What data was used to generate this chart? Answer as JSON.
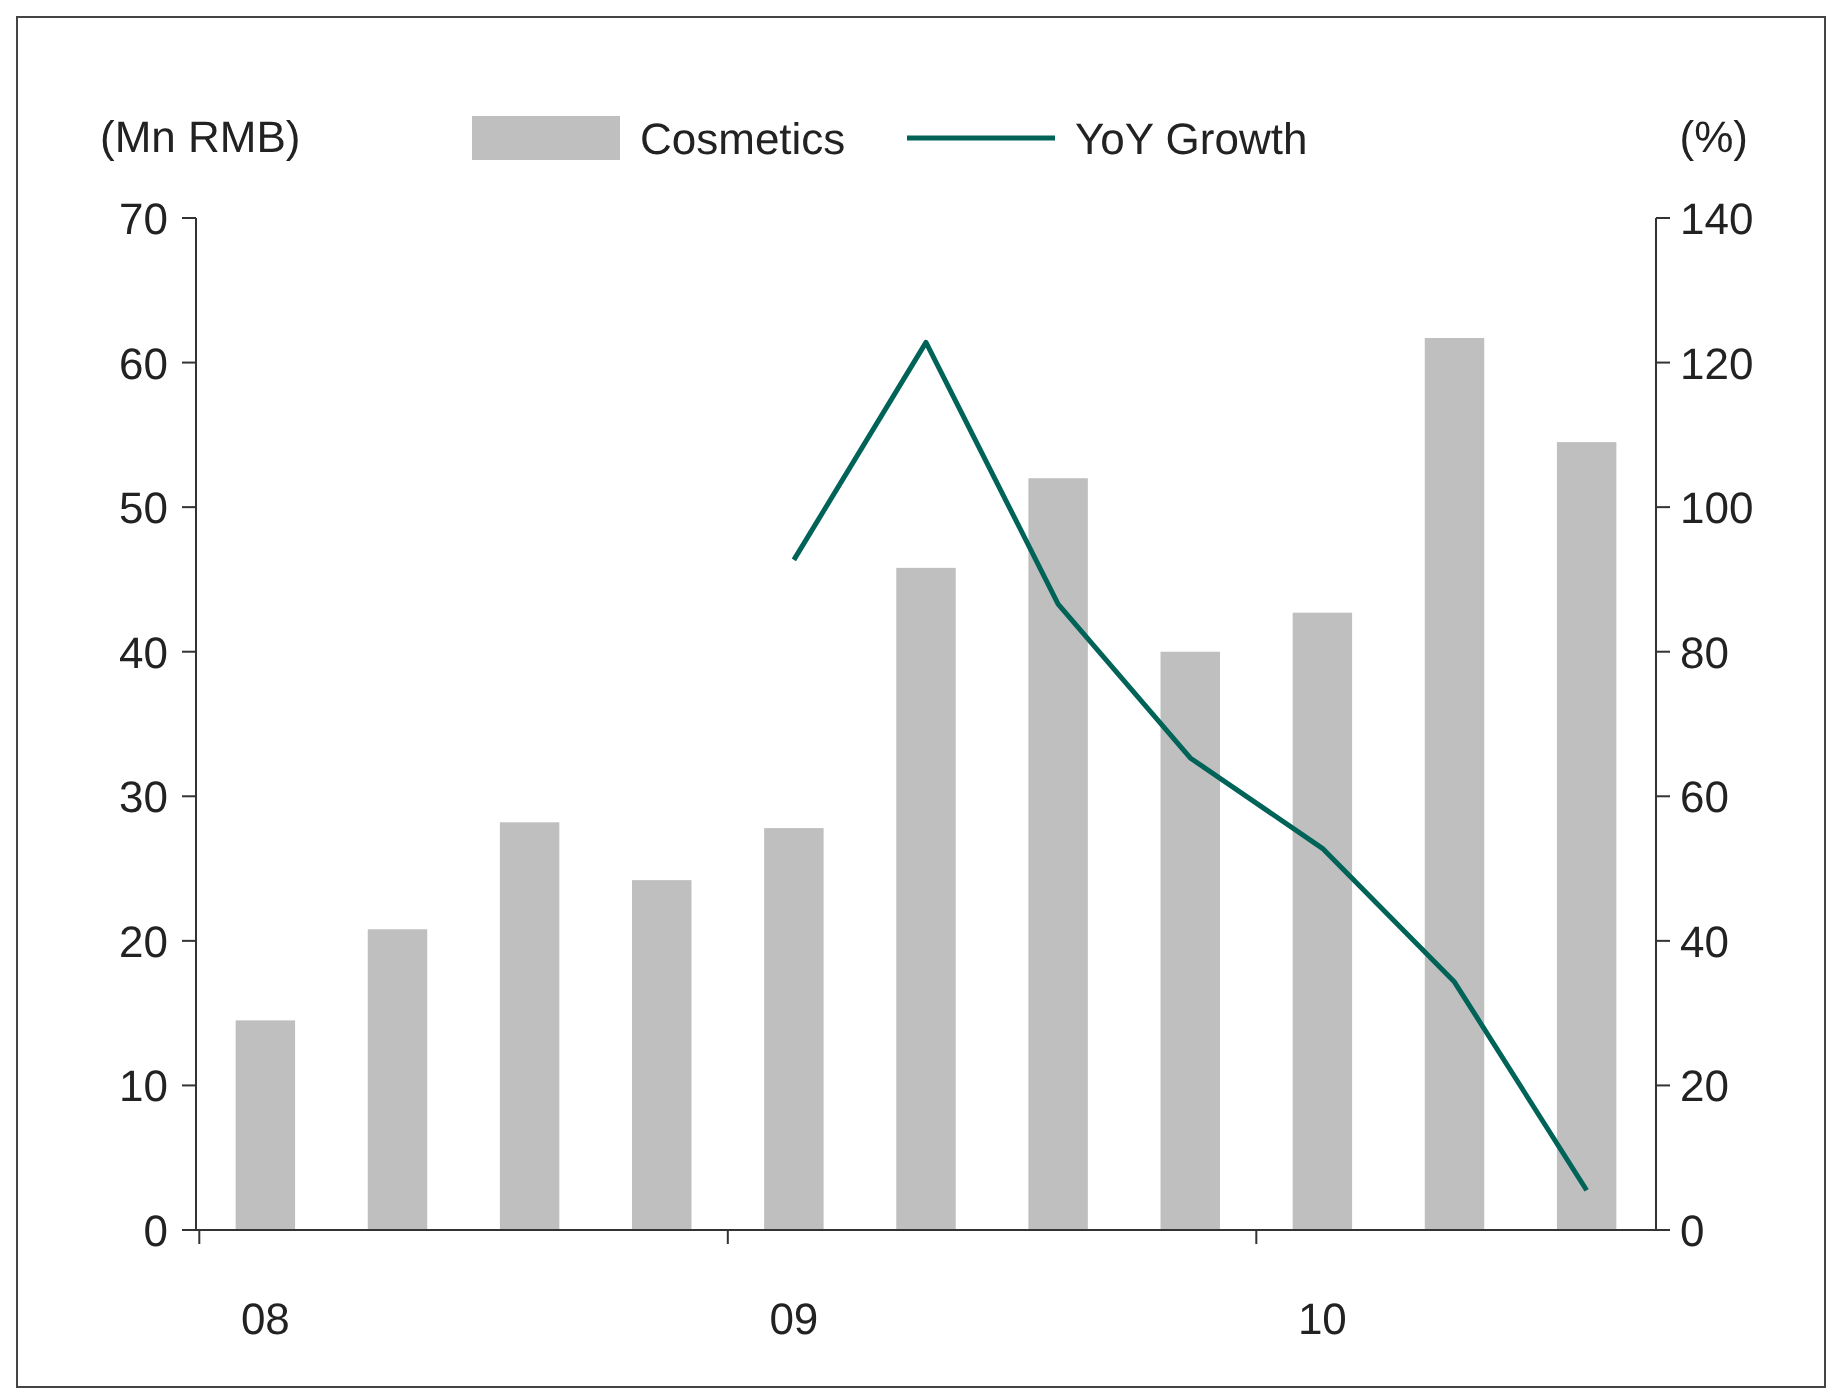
{
  "chart_data": {
    "type": "bar",
    "categories": [
      "08",
      null,
      null,
      null,
      "09",
      null,
      null,
      null,
      "10",
      null,
      null
    ],
    "ylabel": "(Mn RMB)",
    "y2label": "(%)",
    "ylim": [
      0,
      70
    ],
    "yticks": [
      0,
      10,
      20,
      30,
      40,
      50,
      60,
      70
    ],
    "y2lim": [
      0,
      140
    ],
    "y2ticks": [
      0,
      20,
      40,
      60,
      80,
      100,
      120,
      140
    ],
    "series": [
      {
        "name": "Cosmetics",
        "color": "#bfbfbf",
        "values": [
          14.5,
          20.8,
          28.2,
          24.2,
          27.8,
          45.8,
          52,
          40,
          42.7,
          61.7,
          54.5
        ]
      },
      {
        "name": "YoY Growth",
        "type": "line",
        "axis": "y2",
        "color": "#006358",
        "values": [
          null,
          null,
          null,
          null,
          92.7,
          122.8,
          86.6,
          65.3,
          52.8,
          34.3,
          5.5
        ]
      }
    ],
    "legend": "top",
    "grid": false
  }
}
